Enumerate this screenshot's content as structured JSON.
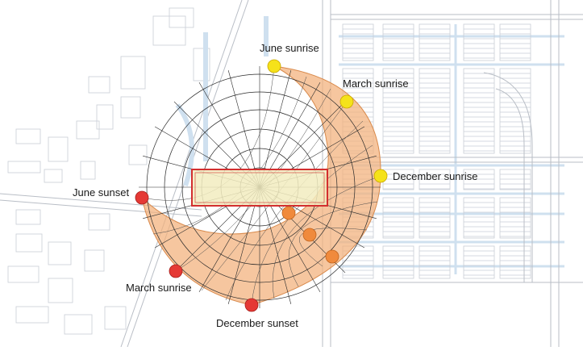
{
  "labels": {
    "june_sunrise": "June sunrise",
    "march_sunrise_top": "March sunrise",
    "december_sunrise": "December sunrise",
    "june_sunset": "June sunset",
    "march_sunrise_bottom": "March sunrise",
    "december_sunset": "December sunset"
  },
  "colors": {
    "background": "#ffffff",
    "map_lines": "#c9ced6",
    "water": "#cfe0ef",
    "sun_path_fill": "#f3b07a",
    "sun_path_stroke": "#d98a4c",
    "rings": "#2a2a2a",
    "building_fill": "#f2ecc0",
    "building_stroke": "#d32f2f",
    "sunrise_dot": "#f5e21a",
    "sunrise_dot_stroke": "#c9a800",
    "sunset_dot": "#e53935",
    "sunset_dot_stroke": "#a51f1c",
    "hour_dot": "#f08a3c",
    "hour_dot_stroke": "#c0631d",
    "label_text": "#1a1a1a"
  }
}
